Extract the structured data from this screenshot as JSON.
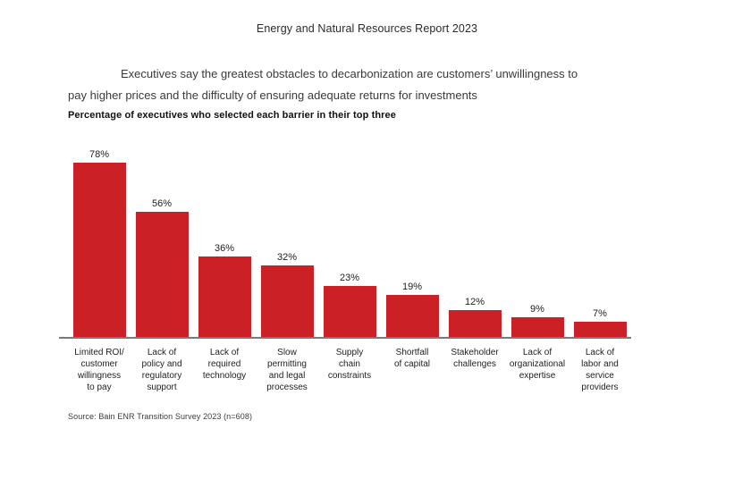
{
  "page": {
    "report_title": "Energy and Natural Resources Report 2023",
    "summary": "Executives say the greatest obstacles to decarbonization are customers’ unwillingness to\npay higher prices and the difficulty of ensuring adequate returns for investments",
    "source": "Source: Bain ENR Transition Survey 2023 (n=608)"
  },
  "chart_data": {
    "type": "bar",
    "title": "Percentage of executives who selected each barrier in their top three",
    "categories": [
      "Limited ROI/\ncustomer\nwillingness\nto pay",
      "Lack of\npolicy and\nregulatory\nsupport",
      "Lack of\nrequired\ntechnology",
      "Slow\npermitting\nand legal\nprocesses",
      "Supply\nchain\nconstraints",
      "Shortfall\nof capital",
      "Stakeholder\nchallenges",
      "Lack of\norganizational\nexpertise",
      "Lack of\nlabor and\nservice\nproviders"
    ],
    "values": [
      78,
      56,
      36,
      32,
      23,
      19,
      12,
      9,
      7
    ],
    "value_labels": [
      "78%",
      "56%",
      "36%",
      "32%",
      "23%",
      "19%",
      "12%",
      "9%",
      "7%"
    ],
    "xlabel": "",
    "ylabel": "",
    "unit": "%",
    "ylim": [
      0,
      100
    ],
    "grid": false,
    "legend": false,
    "bar_color": "#cc2027",
    "axis_color": "#7a7a7a"
  }
}
